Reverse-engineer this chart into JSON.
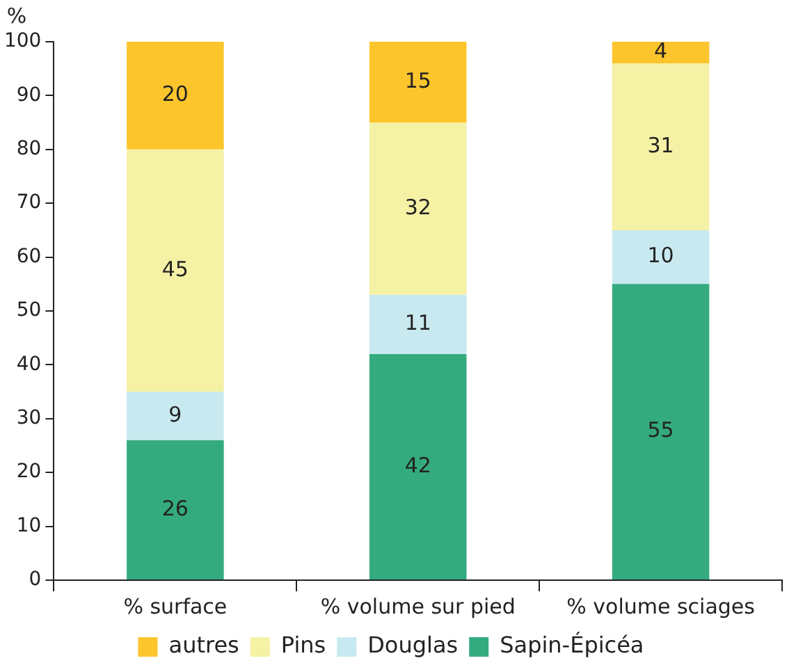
{
  "chart_data": {
    "type": "bar",
    "ylabel": "%",
    "categories": [
      "% surface",
      "% volume sur pied",
      "% volume sciages"
    ],
    "series": [
      {
        "name": "Sapin-Épicéa",
        "color": "#34ab7e",
        "values": [
          26,
          42,
          55
        ]
      },
      {
        "name": "Douglas",
        "color": "#c8e9ef",
        "values": [
          9,
          11,
          10
        ]
      },
      {
        "name": "Pins",
        "color": "#f5f1a5",
        "values": [
          45,
          32,
          31
        ]
      },
      {
        "name": "autres",
        "color": "#fcc52c",
        "values": [
          20,
          15,
          4
        ]
      }
    ],
    "stacked": true,
    "ylim": [
      0,
      100
    ],
    "yticks": [
      0,
      10,
      20,
      30,
      40,
      50,
      60,
      70,
      80,
      90,
      100
    ],
    "grid": false,
    "legend": "bottom",
    "data_labels": true
  }
}
